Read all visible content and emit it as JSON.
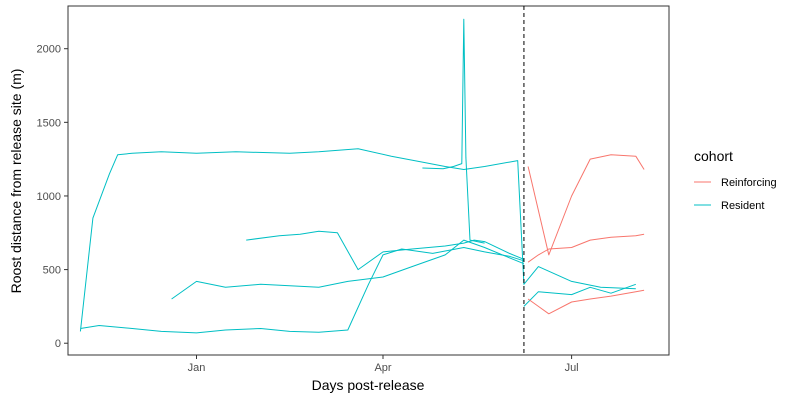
{
  "chart_data": {
    "type": "line",
    "title": "",
    "xlabel": "Days post-release",
    "ylabel": "Roost distance from release site (m)",
    "x_ticks": [
      {
        "label": "Jan",
        "date": "2022-01-01"
      },
      {
        "label": "Apr",
        "date": "2022-04-01"
      },
      {
        "label": "Jul",
        "date": "2022-07-01"
      }
    ],
    "y_ticks": [
      0,
      500,
      1000,
      1500,
      2000
    ],
    "xlim": [
      "2021-10-31",
      "2022-08-17"
    ],
    "ylim": [
      -80,
      2290
    ],
    "vline": {
      "date": "2022-06-08",
      "style": "dashed"
    },
    "legend": {
      "title": "cohort",
      "position": "right",
      "entries": [
        {
          "label": "Reinforcing",
          "color": "#F8766D"
        },
        {
          "label": "Resident",
          "color": "#00BFC4"
        }
      ]
    },
    "series": [
      {
        "name": "Resident",
        "color": "#00BFC4",
        "x": [
          "2021-11-06",
          "2021-11-12",
          "2021-11-20",
          "2021-11-24",
          "2021-12-01",
          "2021-12-15",
          "2022-01-01",
          "2022-01-20",
          "2022-02-15",
          "2022-03-01",
          "2022-03-20",
          "2022-04-05",
          "2022-04-20",
          "2022-05-01",
          "2022-05-10",
          "2022-05-20",
          "2022-06-01",
          "2022-06-05",
          "2022-06-08",
          "2022-06-15",
          "2022-07-01",
          "2022-07-15",
          "2022-08-01"
        ],
        "y": [
          80,
          850,
          1150,
          1280,
          1290,
          1300,
          1290,
          1300,
          1290,
          1300,
          1320,
          1270,
          1230,
          1200,
          1180,
          1200,
          1230,
          1240,
          400,
          520,
          420,
          380,
          370
        ]
      },
      {
        "name": "Resident",
        "color": "#00BFC4",
        "x": [
          "2021-11-06",
          "2021-11-15",
          "2021-12-01",
          "2021-12-15",
          "2022-01-01",
          "2022-01-15",
          "2022-02-01",
          "2022-02-15",
          "2022-03-01",
          "2022-03-15",
          "2022-03-25",
          "2022-04-01",
          "2022-04-10",
          "2022-04-25",
          "2022-05-10",
          "2022-05-20",
          "2022-06-01",
          "2022-06-08"
        ],
        "y": [
          100,
          120,
          100,
          80,
          70,
          90,
          100,
          80,
          75,
          90,
          400,
          600,
          640,
          610,
          650,
          620,
          590,
          560
        ]
      },
      {
        "name": "Resident",
        "color": "#00BFC4",
        "x": [
          "2021-12-20",
          "2022-01-01",
          "2022-01-15",
          "2022-02-01",
          "2022-02-15",
          "2022-03-01",
          "2022-03-15",
          "2022-04-01",
          "2022-04-15",
          "2022-05-01",
          "2022-05-10",
          "2022-05-20",
          "2022-06-01",
          "2022-06-08"
        ],
        "y": [
          300,
          420,
          380,
          400,
          390,
          380,
          420,
          450,
          520,
          600,
          700,
          650,
          580,
          540
        ]
      },
      {
        "name": "Resident",
        "color": "#00BFC4",
        "x": [
          "2022-01-25",
          "2022-02-10",
          "2022-02-20",
          "2022-03-01",
          "2022-03-10",
          "2022-03-20",
          "2022-04-01",
          "2022-04-15",
          "2022-05-01",
          "2022-05-10",
          "2022-05-15",
          "2022-05-20",
          "2022-06-01",
          "2022-06-08"
        ],
        "y": [
          700,
          730,
          740,
          760,
          750,
          500,
          620,
          640,
          660,
          680,
          700,
          690,
          610,
          570
        ]
      },
      {
        "name": "Resident",
        "color": "#00BFC4",
        "x": [
          "2022-04-20",
          "2022-04-30",
          "2022-05-05",
          "2022-05-09",
          "2022-05-10",
          "2022-05-11",
          "2022-05-13",
          "2022-05-20"
        ],
        "y": [
          1190,
          1185,
          1200,
          1220,
          2200,
          1260,
          700,
          680
        ]
      },
      {
        "name": "Resident",
        "color": "#00BFC4",
        "x": [
          "2022-06-08",
          "2022-06-15",
          "2022-07-01",
          "2022-07-10",
          "2022-07-20",
          "2022-08-01"
        ],
        "y": [
          250,
          350,
          330,
          380,
          340,
          400
        ]
      },
      {
        "name": "Reinforcing",
        "color": "#F8766D",
        "x": [
          "2022-06-10",
          "2022-06-15",
          "2022-06-20",
          "2022-07-01",
          "2022-07-10",
          "2022-07-20",
          "2022-08-01",
          "2022-08-05"
        ],
        "y": [
          550,
          600,
          640,
          650,
          700,
          720,
          730,
          740
        ]
      },
      {
        "name": "Reinforcing",
        "color": "#F8766D",
        "x": [
          "2022-06-10",
          "2022-06-15",
          "2022-06-20",
          "2022-07-01",
          "2022-07-10",
          "2022-07-20",
          "2022-08-01",
          "2022-08-05"
        ],
        "y": [
          300,
          250,
          200,
          280,
          300,
          320,
          350,
          360
        ]
      },
      {
        "name": "Reinforcing",
        "color": "#F8766D",
        "x": [
          "2022-06-10",
          "2022-06-20",
          "2022-07-01",
          "2022-07-10",
          "2022-07-20",
          "2022-08-01",
          "2022-08-05"
        ],
        "y": [
          1200,
          600,
          1000,
          1250,
          1280,
          1270,
          1180
        ]
      }
    ]
  }
}
